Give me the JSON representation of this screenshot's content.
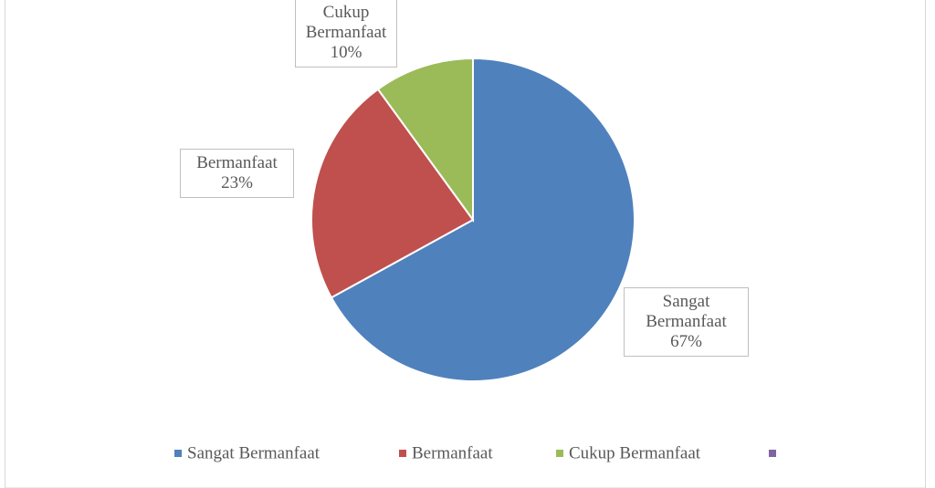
{
  "chart_data": {
    "type": "pie",
    "categories": [
      "Sangat Bermanfaat",
      "Bermanfaat",
      "Cukup Bermanfaat",
      null
    ],
    "values": [
      67,
      23,
      10,
      0
    ],
    "value_labels": [
      "67%",
      "23%",
      "10%",
      null
    ],
    "colors": [
      "#4f81bd",
      "#c0504d",
      "#9bbb59",
      "#8064a2"
    ],
    "legend": "bottom"
  }
}
